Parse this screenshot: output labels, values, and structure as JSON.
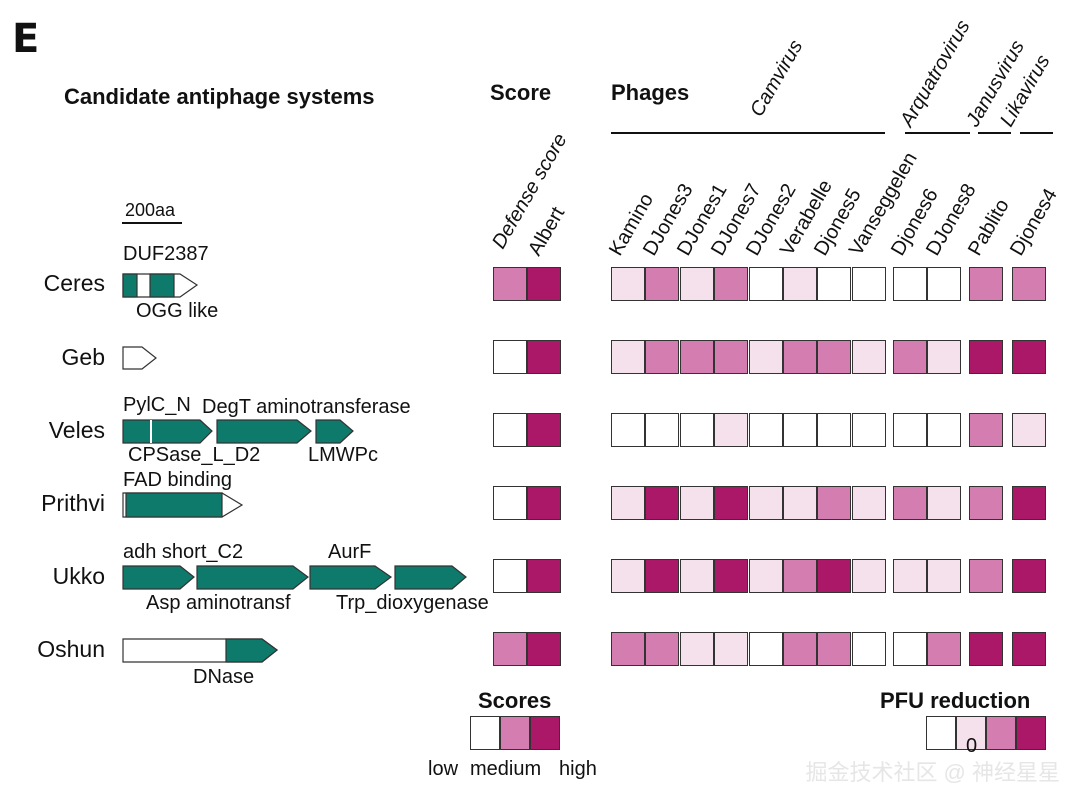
{
  "panel_letter": "E",
  "headers": {
    "systems": "Candidate antiphage systems",
    "score": "Score",
    "phages": "Phages",
    "scores_legend": "Scores",
    "pfu_legend": "PFU reduction"
  },
  "scale_bar": "200aa",
  "score_columns": [
    "Defense score",
    "Albert"
  ],
  "phage_groups": [
    "Camvirus",
    "Arquatrovirus",
    "Janusvirus",
    "Likavirus"
  ],
  "phage_columns": [
    "Kamino",
    "DJones3",
    "DJones1",
    "DJones7",
    "DJones2",
    "Verabelle",
    "Djones5",
    "Vanseggelen",
    "Djones6",
    "DJones8",
    "Pablito",
    "Djones4"
  ],
  "systems": [
    {
      "name": "Ceres",
      "genes_above": [
        "DUF2387"
      ],
      "genes_below": [
        "OGG like"
      ],
      "score": [
        2,
        3
      ],
      "pfu": [
        1,
        2,
        1,
        2,
        0,
        1,
        0,
        0,
        0,
        0,
        2,
        2
      ]
    },
    {
      "name": "Geb",
      "genes_above": [],
      "genes_below": [],
      "score": [
        0,
        3
      ],
      "pfu": [
        1,
        2,
        2,
        2,
        1,
        2,
        2,
        1,
        2,
        1,
        3,
        3
      ]
    },
    {
      "name": "Veles",
      "genes_above": [
        "PylC_N",
        "DegT aminotransferase"
      ],
      "genes_below": [
        "CPSase_L_D2",
        "LMWPc"
      ],
      "score": [
        0,
        3
      ],
      "pfu": [
        0,
        0,
        0,
        1,
        0,
        0,
        0,
        0,
        0,
        0,
        2,
        1
      ]
    },
    {
      "name": "Prithvi",
      "genes_above": [
        "FAD binding"
      ],
      "genes_below": [],
      "score": [
        0,
        3
      ],
      "pfu": [
        1,
        3,
        1,
        3,
        1,
        1,
        2,
        1,
        2,
        1,
        2,
        3
      ]
    },
    {
      "name": "Ukko",
      "genes_above": [
        "adh short_C2",
        "AurF"
      ],
      "genes_below": [
        "Asp aminotransf",
        "Trp_dioxygenase"
      ],
      "score": [
        0,
        3
      ],
      "pfu": [
        1,
        3,
        1,
        3,
        1,
        2,
        3,
        1,
        1,
        1,
        2,
        3
      ]
    },
    {
      "name": "Oshun",
      "genes_above": [],
      "genes_below": [
        "DNase"
      ],
      "score": [
        2,
        3
      ],
      "pfu": [
        2,
        2,
        1,
        1,
        0,
        2,
        2,
        0,
        0,
        2,
        3,
        3
      ]
    }
  ],
  "score_legend_labels": [
    "low",
    "medium",
    "high"
  ],
  "pfu_legend_text": "0",
  "colors": {
    "0": "#ffffff",
    "1": "#f5e1ec",
    "2": "#d47db1",
    "3": "#ab1868",
    "gene": "#0e7a6b"
  },
  "watermark": "掘金技术社区 @ 神经星星"
}
